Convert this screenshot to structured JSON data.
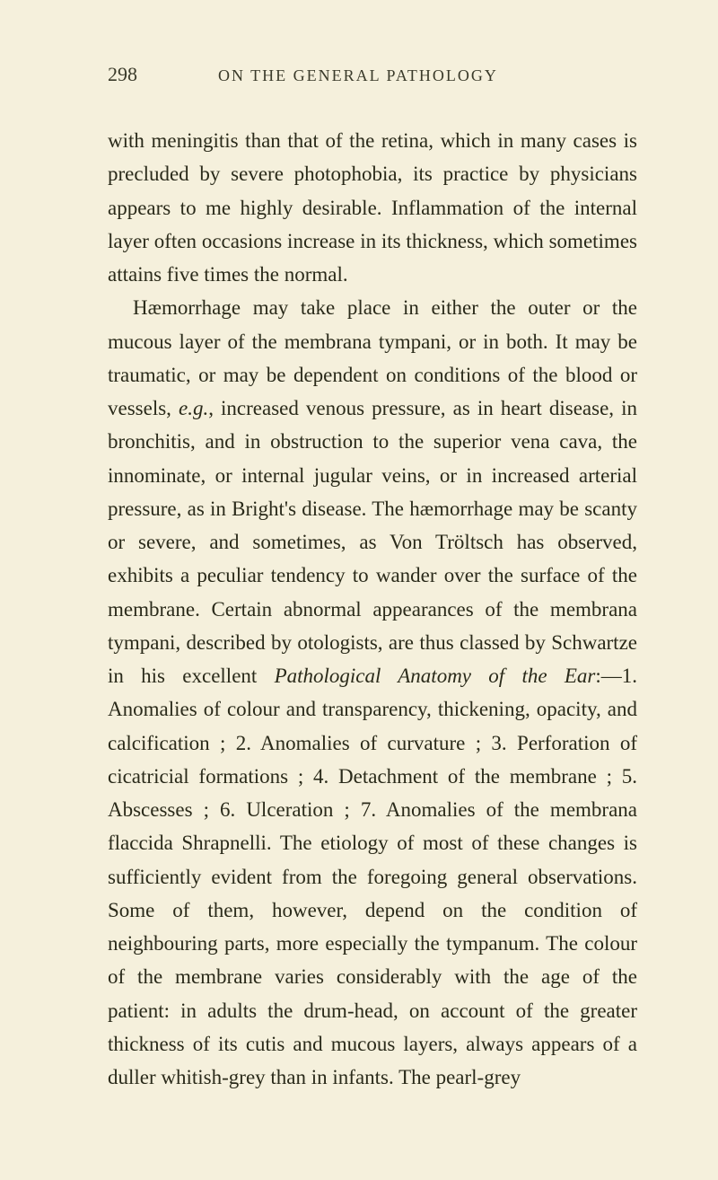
{
  "header": {
    "page_number": "298",
    "title": "ON THE GENERAL PATHOLOGY"
  },
  "paragraphs": {
    "p1": "with meningitis than that of the retina, which in many cases is precluded by severe photophobia, its practice by physicians appears to me highly desirable. Inflammation of the internal layer often occasions increase in its thickness, which sometimes attains five times the normal.",
    "p2_part1": "Hæmorrhage may take place in either the outer or the mucous layer of the membrana tympani, or in both. It may be traumatic, or may be dependent on conditions of the blood or vessels, ",
    "p2_italic1": "e.g.",
    "p2_part2": ", increased venous pressure, as in heart disease, in bronchitis, and in obstruction to the superior vena cava, the innominate, or internal jugular veins, or in increased arterial pressure, as in Bright's disease. The hæmorrhage may be scanty or severe, and sometimes, as Von Tröltsch has observed, exhibits a peculiar tendency to wander over the surface of the membrane. Certain abnormal appearances of the membrana tympani, described by otologists, are thus classed by Schwartze in his excellent ",
    "p2_italic2": "Pathological Anatomy of the Ear",
    "p2_part3": ":—1. Anomalies of colour and transparency, thickening, opacity, and calcification ; 2. Anomalies of curvature ; 3. Perforation of cicatricial formations ; 4. Detachment of the membrane ; 5. Abscesses ; 6. Ulceration ; 7. Anomalies of the membrana flaccida Shrapnelli. The etiology of most of these changes is sufficiently evident from the foregoing general observations. Some of them, however, depend on the condition of neighbouring parts, more especially the tympanum. The colour of the membrane varies considerably with the age of the patient: in adults the drum-head, on account of the greater thickness of its cutis and mucous layers, always appears of a duller whitish-grey than in infants. The pearl-grey"
  }
}
